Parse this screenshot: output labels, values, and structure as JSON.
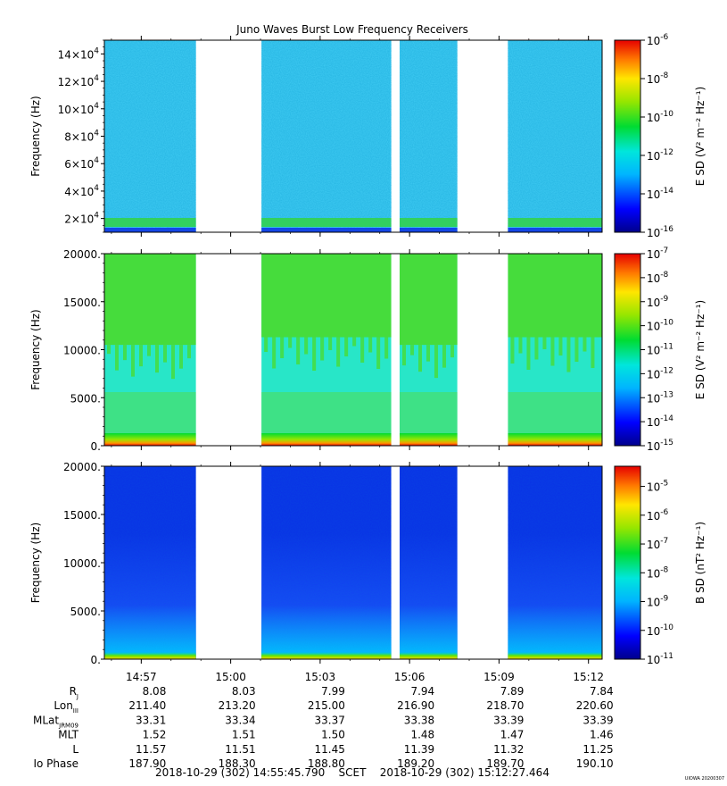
{
  "title": "Juno Waves Burst Low Frequency Receivers",
  "chart_data": [
    {
      "type": "heatmap",
      "panel": "top",
      "ylabel": "Frequency (Hz)",
      "ylim": [
        10000,
        150000
      ],
      "yticks": [
        {
          "value": 20000,
          "mant": "2×10",
          "exp": "4"
        },
        {
          "value": 40000,
          "mant": "4×10",
          "exp": "4"
        },
        {
          "value": 60000,
          "mant": "6×10",
          "exp": "4"
        },
        {
          "value": 80000,
          "mant": "8×10",
          "exp": "4"
        },
        {
          "value": 100000,
          "mant": "10×10",
          "exp": "4"
        },
        {
          "value": 120000,
          "mant": "12×10",
          "exp": "4"
        },
        {
          "value": 140000,
          "mant": "14×10",
          "exp": "4"
        }
      ],
      "colorbar": {
        "label": "E SD (V² m⁻² Hz⁻¹)",
        "log_range": [
          -16,
          -6
        ],
        "ticks": [
          {
            "exp": "-6",
            "value": -6
          },
          {
            "exp": "-8",
            "value": -8
          },
          {
            "exp": "-10",
            "value": -10
          },
          {
            "exp": "-12",
            "value": -12
          },
          {
            "exp": "-14",
            "value": -14
          },
          {
            "exp": "-16",
            "value": -16
          }
        ]
      }
    },
    {
      "type": "heatmap",
      "panel": "middle",
      "ylabel": "Frequency (Hz)",
      "ylim": [
        0,
        20000
      ],
      "yticks": [
        {
          "value": 0,
          "label": "0."
        },
        {
          "value": 5000,
          "label": "5000."
        },
        {
          "value": 10000,
          "label": "10000."
        },
        {
          "value": 15000,
          "label": "15000."
        },
        {
          "value": 20000,
          "label": "20000."
        }
      ],
      "colorbar": {
        "label": "E SD (V² m⁻² Hz⁻¹)",
        "log_range": [
          -15,
          -7
        ],
        "ticks": [
          {
            "exp": "-7",
            "value": -7
          },
          {
            "exp": "-8",
            "value": -8
          },
          {
            "exp": "-9",
            "value": -9
          },
          {
            "exp": "-10",
            "value": -10
          },
          {
            "exp": "-11",
            "value": -11
          },
          {
            "exp": "-12",
            "value": -12
          },
          {
            "exp": "-13",
            "value": -13
          },
          {
            "exp": "-14",
            "value": -14
          },
          {
            "exp": "-15",
            "value": -15
          }
        ]
      }
    },
    {
      "type": "heatmap",
      "panel": "bottom",
      "ylabel": "Frequency (Hz)",
      "ylim": [
        0,
        20000
      ],
      "yticks": [
        {
          "value": 0,
          "label": "0."
        },
        {
          "value": 5000,
          "label": "5000."
        },
        {
          "value": 10000,
          "label": "10000."
        },
        {
          "value": 15000,
          "label": "15000."
        },
        {
          "value": 20000,
          "label": "20000."
        }
      ],
      "colorbar": {
        "label": "B SD (nT² Hz⁻¹)",
        "log_range": [
          -11,
          -4.3
        ],
        "ticks": [
          {
            "exp": "-5",
            "value": -5
          },
          {
            "exp": "-6",
            "value": -6
          },
          {
            "exp": "-7",
            "value": -7
          },
          {
            "exp": "-8",
            "value": -8
          },
          {
            "exp": "-9",
            "value": -9
          },
          {
            "exp": "-10",
            "value": -10
          },
          {
            "exp": "-11",
            "value": -11
          }
        ]
      }
    }
  ],
  "time_axis": {
    "start": "14:55:45.790",
    "end": "15:12:27.464",
    "tick_labels": [
      "14:57",
      "15:00",
      "15:03",
      "15:06",
      "15:09",
      "15:12"
    ]
  },
  "data_gaps": [
    [
      "14:58:50",
      "15:01:02"
    ],
    [
      "15:05:23",
      "15:05:40"
    ],
    [
      "15:07:36",
      "15:09:18"
    ]
  ],
  "ephemeris": [
    {
      "label": "R",
      "sub": "J",
      "values": [
        "8.08",
        "8.03",
        "7.99",
        "7.94",
        "7.89",
        "7.84"
      ]
    },
    {
      "label": "Lon",
      "sub": "III",
      "values": [
        "211.40",
        "213.20",
        "215.00",
        "216.90",
        "218.70",
        "220.60"
      ]
    },
    {
      "label": "MLat",
      "sub": "JRM09",
      "values": [
        "33.31",
        "33.34",
        "33.37",
        "33.38",
        "33.39",
        "33.39"
      ]
    },
    {
      "label": "MLT",
      "sub": "",
      "values": [
        "1.52",
        "1.51",
        "1.50",
        "1.48",
        "1.47",
        "1.46"
      ]
    },
    {
      "label": "L",
      "sub": "",
      "values": [
        "11.57",
        "11.51",
        "11.45",
        "11.39",
        "11.32",
        "11.25"
      ]
    },
    {
      "label": "Io Phase",
      "sub": "",
      "values": [
        "187.90",
        "188.30",
        "188.80",
        "189.20",
        "189.70",
        "190.10"
      ]
    }
  ],
  "footer": {
    "range": "2018-10-29 (302) 14:55:45.790    SCET    2018-10-29 (302) 15:12:27.464",
    "credit": "UIOWA 20200307"
  }
}
